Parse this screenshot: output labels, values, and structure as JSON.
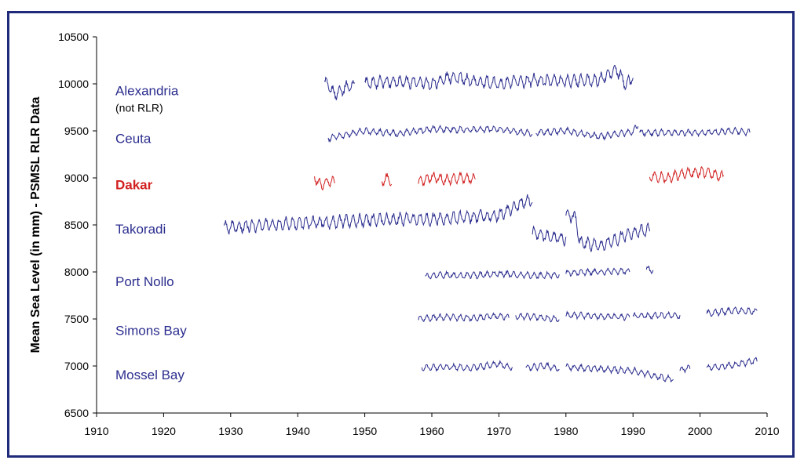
{
  "chart_data": {
    "type": "line",
    "title": "",
    "xlabel": "",
    "ylabel": "Mean Sea Level (in mm) - PSMSL RLR Data",
    "xlim": [
      1910,
      2010
    ],
    "ylim": [
      6500,
      10500
    ],
    "x_ticks": [
      "1910",
      "1920",
      "1930",
      "1940",
      "1950",
      "1960",
      "1970",
      "1980",
      "1990",
      "2000",
      "2010"
    ],
    "y_ticks": [
      "6500",
      "7000",
      "7500",
      "8000",
      "8500",
      "9000",
      "9500",
      "10000",
      "10500"
    ],
    "grid": false,
    "series": [
      {
        "name": "Alexandria",
        "note": "(not RLR)",
        "color": "#2b2d8e",
        "label_value": 9930,
        "segments": [
          {
            "x": [
              1944.0,
              1945.5,
              1947.0,
              1948.5
            ],
            "y": [
              10020,
              9890,
              9960,
              9990
            ]
          },
          {
            "x": [
              1950.0,
              1955,
              1960,
              1963,
              1965,
              1970,
              1975,
              1980,
              1985,
              1987.5,
              1989,
              1990.0
            ],
            "y": [
              10010,
              10030,
              10000,
              10080,
              10040,
              10000,
              10040,
              10030,
              10040,
              10150,
              9990,
              10080
            ]
          }
        ]
      },
      {
        "name": "Ceuta",
        "color": "#2b2d8e",
        "label_value": 9420,
        "segments": [
          {
            "x": [
              1944.5,
              1950,
              1955,
              1960,
              1965,
              1970,
              1975
            ],
            "y": [
              9420,
              9500,
              9470,
              9520,
              9510,
              9520,
              9470
            ]
          },
          {
            "x": [
              1975.5,
              1980,
              1985,
              1990,
              1990.8
            ],
            "y": [
              9480,
              9500,
              9440,
              9490,
              9570
            ]
          },
          {
            "x": [
              1991.0,
              1995,
              2000,
              2005,
              2007.5
            ],
            "y": [
              9480,
              9480,
              9480,
              9500,
              9480
            ]
          }
        ]
      },
      {
        "name": "Dakar",
        "color": "#d21f1f",
        "label_value": 8930,
        "segments": [
          {
            "x": [
              1942.5,
              1943.5,
              1944.5,
              1945.5
            ],
            "y": [
              9000,
              8920,
              8960,
              8960
            ]
          },
          {
            "x": [
              1952.5,
              1953.5,
              1954.0
            ],
            "y": [
              8960,
              9000,
              8940
            ]
          },
          {
            "x": [
              1958.0,
              1960,
              1962,
              1964,
              1966.5
            ],
            "y": [
              8950,
              9010,
              8980,
              9000,
              8990
            ]
          },
          {
            "x": [
              1992.5,
              1995,
              1998,
              2001,
              2003.5
            ],
            "y": [
              9020,
              9000,
              9050,
              9060,
              9010
            ]
          }
        ]
      },
      {
        "name": "Takoradi",
        "color": "#2b2d8e",
        "label_value": 8460,
        "segments": [
          {
            "x": [
              1929.0,
              1935,
              1940,
              1945,
              1950,
              1955,
              1960,
              1965,
              1970,
              1972,
              1974,
              1975.0
            ],
            "y": [
              8470,
              8500,
              8520,
              8530,
              8550,
              8560,
              8560,
              8580,
              8600,
              8680,
              8760,
              8760
            ]
          },
          {
            "x": [
              1975.0,
              1978,
              1980.0
            ],
            "y": [
              8420,
              8370,
              8350
            ]
          },
          {
            "x": [
              1980.0,
              1981.5,
              1982.0
            ],
            "y": [
              8620,
              8560,
              8330
            ]
          },
          {
            "x": [
              1982.0,
              1985,
              1988,
              1990,
              1992.5
            ],
            "y": [
              8320,
              8270,
              8360,
              8420,
              8450
            ]
          }
        ]
      },
      {
        "name": "Port Nollo",
        "color": "#2b2d8e",
        "label_value": 7900,
        "segments": [
          {
            "x": [
              1959.0,
              1962,
              1965,
              1970,
              1975,
              1979.0
            ],
            "y": [
              7950,
              7970,
              7960,
              7980,
              7960,
              7970
            ]
          },
          {
            "x": [
              1980.0,
              1985,
              1989.5
            ],
            "y": [
              7990,
              8000,
              8010
            ]
          },
          {
            "x": [
              1992.0,
              1993.0
            ],
            "y": [
              8030,
              8020
            ]
          }
        ]
      },
      {
        "name": "Simons Bay",
        "color": "#2b2d8e",
        "label_value": 7380,
        "segments": [
          {
            "x": [
              1958.0,
              1962,
              1966,
              1970,
              1971.5
            ],
            "y": [
              7500,
              7520,
              7510,
              7530,
              7520
            ]
          },
          {
            "x": [
              1972.5,
              1975,
              1979.0
            ],
            "y": [
              7530,
              7520,
              7500
            ]
          },
          {
            "x": [
              1980.0,
              1985,
              1989.5
            ],
            "y": [
              7540,
              7530,
              7520
            ]
          },
          {
            "x": [
              1990.0,
              1995,
              1997.0
            ],
            "y": [
              7530,
              7540,
              7530
            ]
          },
          {
            "x": [
              2001.0,
              2005,
              2008.5
            ],
            "y": [
              7560,
              7590,
              7580
            ]
          }
        ]
      },
      {
        "name": "Mossel Bay",
        "color": "#2b2d8e",
        "label_value": 6910,
        "segments": [
          {
            "x": [
              1958.5,
              1962,
              1966,
              1970,
              1972.0
            ],
            "y": [
              6980,
              6990,
              6980,
              7020,
              6980
            ]
          },
          {
            "x": [
              1974.0,
              1977,
              1979.0
            ],
            "y": [
              6980,
              7000,
              6970
            ]
          },
          {
            "x": [
              1980.0,
              1985,
              1990,
              1994,
              1996.0
            ],
            "y": [
              6990,
              6970,
              6950,
              6880,
              6860
            ]
          },
          {
            "x": [
              1997.0,
              1998.5
            ],
            "y": [
              6960,
              6980
            ]
          },
          {
            "x": [
              2001.0,
              2005,
              2008.5
            ],
            "y": [
              6980,
              7010,
              7060
            ]
          }
        ]
      }
    ]
  }
}
